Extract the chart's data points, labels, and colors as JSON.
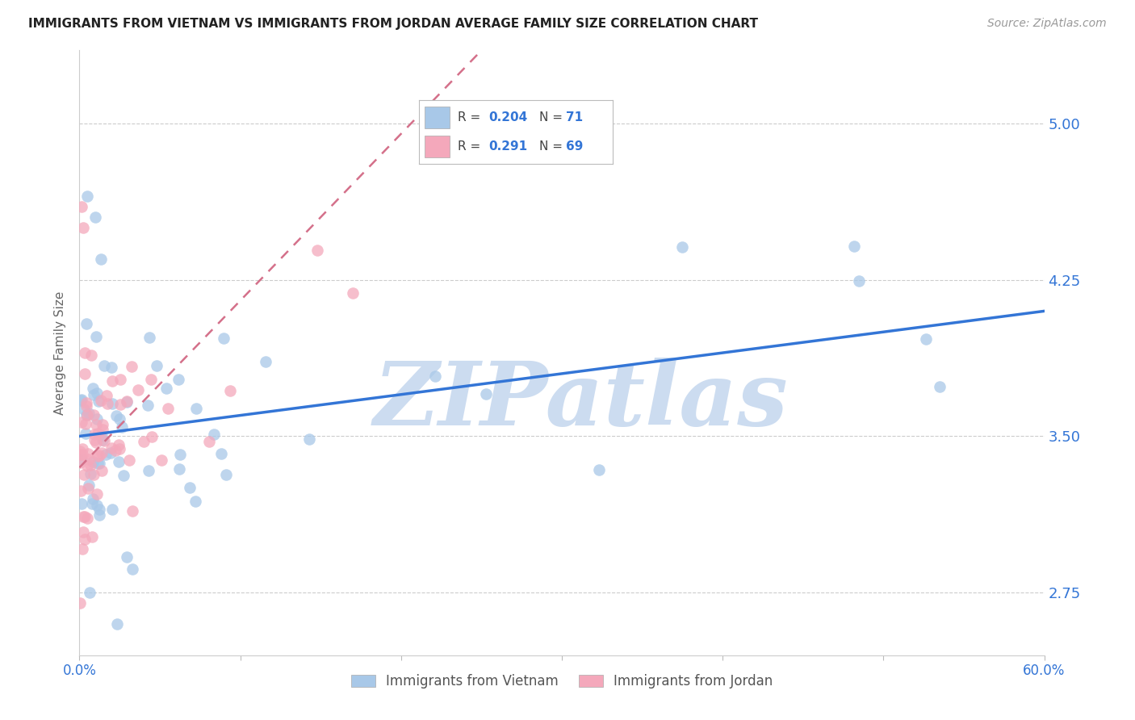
{
  "title": "IMMIGRANTS FROM VIETNAM VS IMMIGRANTS FROM JORDAN AVERAGE FAMILY SIZE CORRELATION CHART",
  "source": "Source: ZipAtlas.com",
  "ylabel": "Average Family Size",
  "xlim": [
    0.0,
    0.6
  ],
  "ylim": [
    2.45,
    5.35
  ],
  "yticks": [
    2.75,
    3.5,
    4.25,
    5.0
  ],
  "color_vietnam": "#a8c8e8",
  "color_jordan": "#f4a8bb",
  "color_vietnam_line": "#3375d6",
  "color_jordan_line": "#d4708a",
  "watermark": "ZIPatlas",
  "watermark_color": "#ccdcf0",
  "axis_color": "#3375d6",
  "legend_r1": "0.204",
  "legend_n1": "71",
  "legend_r2": "0.291",
  "legend_n2": "69",
  "label_vietnam": "Immigrants from Vietnam",
  "label_jordan": "Immigrants from Jordan"
}
